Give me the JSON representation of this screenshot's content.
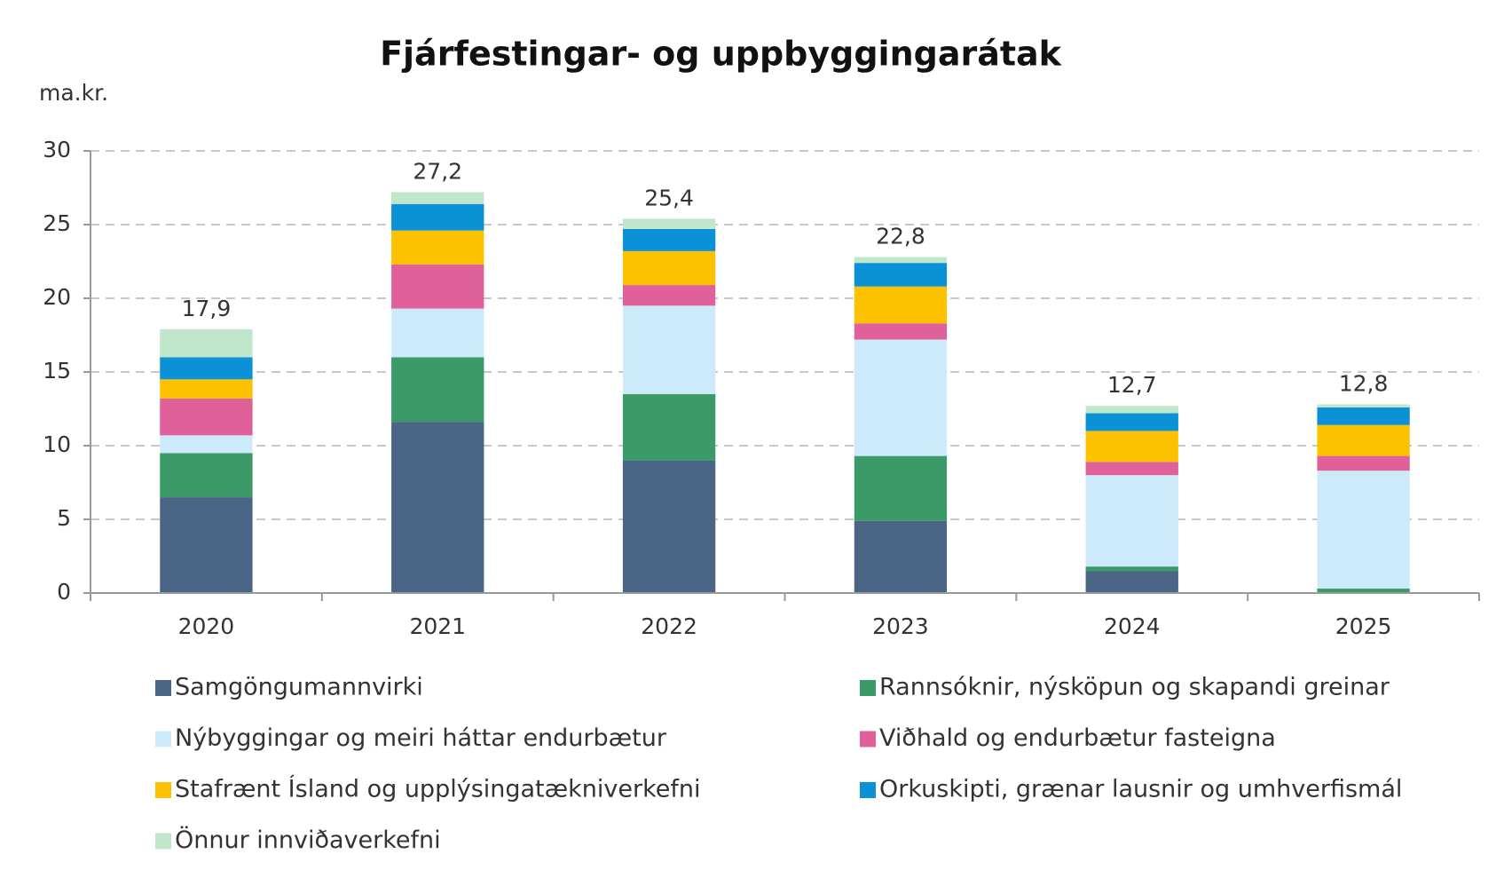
{
  "chart_data": {
    "type": "stacked_bar",
    "title": "Fjárfestingar- og uppbyggingarátak",
    "y_label": "ma.kr.",
    "categories": [
      "2020",
      "2021",
      "2022",
      "2023",
      "2024",
      "2025"
    ],
    "series": [
      {
        "name": "Samgöngumannvirki",
        "color": "#4a6585",
        "values": [
          6.5,
          11.6,
          9.0,
          4.9,
          1.5,
          0.0
        ]
      },
      {
        "name": "Rannsóknir, nýsköpun og skapandi greinar",
        "color": "#3a9a68",
        "values": [
          3.0,
          4.4,
          4.5,
          4.4,
          0.3,
          0.3
        ]
      },
      {
        "name": "Nýbyggingar og meiri háttar endurbætur",
        "color": "#cdeafa",
        "values": [
          1.2,
          3.3,
          6.0,
          7.9,
          6.2,
          8.0
        ]
      },
      {
        "name": "Viðhald og endurbætur fasteigna",
        "color": "#e0609a",
        "values": [
          2.5,
          3.0,
          1.4,
          1.1,
          0.9,
          1.0
        ]
      },
      {
        "name": "Stafrænt Ísland og upplýsingatækniverkefni",
        "color": "#fcc200",
        "values": [
          1.3,
          2.3,
          2.3,
          2.5,
          2.1,
          2.1
        ]
      },
      {
        "name": "Orkuskipti, grænar lausnir og umhverfismál",
        "color": "#0a91d6",
        "values": [
          1.5,
          1.8,
          1.5,
          1.6,
          1.2,
          1.2
        ]
      },
      {
        "name": "Önnur innviðaverkefni",
        "color": "#c0e6cc",
        "values": [
          1.9,
          0.8,
          0.7,
          0.4,
          0.5,
          0.2
        ]
      }
    ],
    "totals": [
      17.9,
      27.2,
      25.4,
      22.8,
      12.7,
      12.8
    ],
    "total_labels": [
      "17,9",
      "27,2",
      "25,4",
      "22,8",
      "12,7",
      "12,8"
    ],
    "ylim": [
      0,
      30
    ],
    "yticks": [
      0,
      5,
      10,
      15,
      20,
      25,
      30
    ],
    "grid": true
  }
}
